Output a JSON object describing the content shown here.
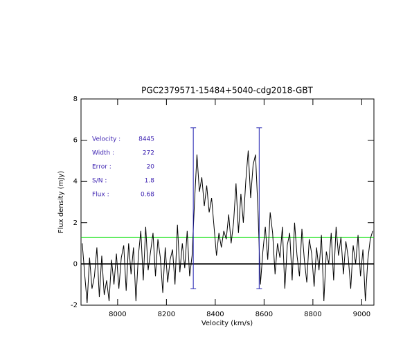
{
  "chart_data": {
    "type": "line",
    "title": "PGC2379571-15484+5040-cdg2018-GBT",
    "x_label": "Velocity (km/s)",
    "y_label": "Flux density (mJy)",
    "xlim": [
      7850,
      9050
    ],
    "ylim": [
      -2,
      8
    ],
    "xticks": [
      8000,
      8200,
      8400,
      8600,
      8800,
      9000
    ],
    "yticks": [
      -2,
      0,
      2,
      4,
      6,
      8
    ],
    "x": [
      7855,
      7865,
      7875,
      7885,
      7895,
      7905,
      7915,
      7925,
      7935,
      7945,
      7955,
      7965,
      7975,
      7985,
      7995,
      8005,
      8015,
      8025,
      8035,
      8045,
      8055,
      8065,
      8075,
      8085,
      8095,
      8105,
      8115,
      8125,
      8135,
      8145,
      8155,
      8165,
      8175,
      8185,
      8195,
      8205,
      8215,
      8225,
      8235,
      8245,
      8255,
      8265,
      8275,
      8285,
      8295,
      8305,
      8315,
      8325,
      8335,
      8345,
      8355,
      8365,
      8375,
      8385,
      8395,
      8405,
      8415,
      8425,
      8435,
      8445,
      8455,
      8465,
      8475,
      8485,
      8495,
      8505,
      8515,
      8525,
      8535,
      8545,
      8555,
      8565,
      8575,
      8585,
      8595,
      8605,
      8615,
      8625,
      8635,
      8645,
      8655,
      8665,
      8675,
      8685,
      8695,
      8705,
      8715,
      8725,
      8735,
      8745,
      8755,
      8765,
      8775,
      8785,
      8795,
      8805,
      8815,
      8825,
      8835,
      8845,
      8855,
      8865,
      8875,
      8885,
      8895,
      8905,
      8915,
      8925,
      8935,
      8945,
      8955,
      8965,
      8975,
      8985,
      8995,
      9005,
      9015,
      9025,
      9035,
      9045
    ],
    "series": [
      {
        "color": "#000000",
        "values": [
          1.0,
          -0.5,
          -1.9,
          0.3,
          -1.2,
          -0.6,
          0.8,
          -1.6,
          0.4,
          -1.5,
          -0.8,
          -1.8,
          0.2,
          -1.0,
          0.5,
          -1.2,
          0.3,
          0.9,
          -1.3,
          1.0,
          -0.5,
          0.8,
          -1.8,
          0.4,
          1.6,
          -0.8,
          1.8,
          -0.3,
          0.6,
          1.5,
          -0.6,
          1.2,
          0.3,
          -1.4,
          0.8,
          -0.9,
          0.2,
          0.7,
          -1.0,
          1.9,
          -0.4,
          1.0,
          -0.2,
          1.6,
          -0.6,
          0.4,
          3.0,
          5.3,
          3.5,
          4.2,
          2.8,
          3.8,
          2.5,
          3.2,
          1.8,
          0.4,
          1.5,
          0.8,
          1.6,
          1.2,
          2.4,
          1.0,
          2.0,
          3.9,
          1.5,
          3.4,
          2.0,
          4.0,
          5.5,
          3.2,
          4.8,
          5.3,
          2.6,
          -1.0,
          0.6,
          1.8,
          0.2,
          2.5,
          1.5,
          -0.5,
          1.0,
          0.3,
          1.8,
          -1.2,
          0.9,
          1.5,
          -0.8,
          2.0,
          0.4,
          -0.6,
          1.7,
          0.2,
          -0.9,
          1.2,
          0.5,
          -1.1,
          0.8,
          -0.3,
          1.4,
          -1.8,
          0.6,
          0.0,
          1.5,
          -0.8,
          1.8,
          0.4,
          1.3,
          -0.5,
          1.1,
          0.3,
          -1.2,
          0.9,
          0.0,
          1.4,
          -0.6,
          0.7,
          -1.8,
          0.2,
          1.2,
          1.6
        ]
      }
    ],
    "hlines": [
      {
        "y": 0,
        "color": "#000000"
      },
      {
        "y": 1.28,
        "color": "#00e000"
      }
    ],
    "vlines": [
      {
        "x": 8310,
        "ymin": -1.2,
        "ymax": 6.6,
        "color": "#2020b0"
      },
      {
        "x": 8580,
        "ymin": -1.2,
        "ymax": 6.6,
        "color": "#2020b0"
      }
    ],
    "annotations": [
      {
        "label": "Velocity :",
        "value": 8445
      },
      {
        "label": "Width :",
        "value": 272
      },
      {
        "label": "Error :",
        "value": 20
      },
      {
        "label": "S/N :",
        "value": 1.8
      },
      {
        "label": "Flux :",
        "value": 0.68
      }
    ]
  }
}
